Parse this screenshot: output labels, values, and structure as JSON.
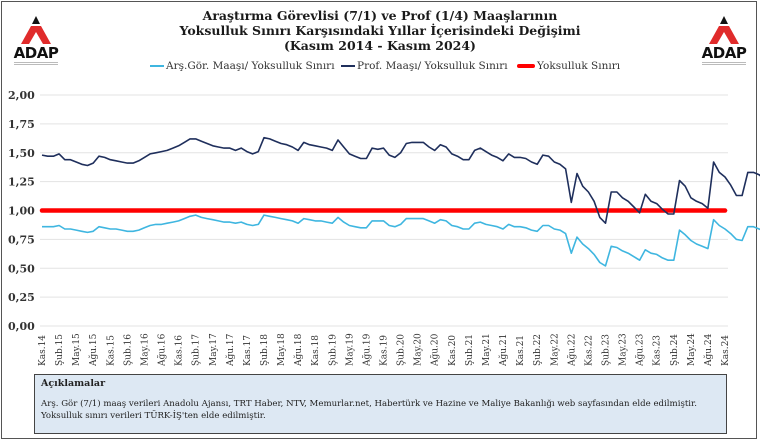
{
  "header": {
    "title_lines": [
      "Araştırma Görevlisi (7/1) ve Prof (1/4) Maaşlarının",
      "Yoksulluk Sınırı Karşısındaki Yıllar İçerisindeki Değişimi",
      "(Kasım 2014 - Kasım 2024)"
    ],
    "logo_left": {
      "name": "ADAP"
    },
    "logo_right": {
      "name": "ADAP"
    }
  },
  "colors": {
    "arsgor": "#3fb6e0",
    "prof": "#1f2f5c",
    "threshold": "#ff0000",
    "grid": "#e3e3e3",
    "note_bg": "#dde8f3"
  },
  "notes": {
    "title": "Açıklamalar",
    "lines": [
      "Arş. Gör (7/1) maaş verileri Anadolu Ajansı, TRT Haber, NTV, Memurlar.net, Habertürk ve Hazine ve Maliye Bakanlığı web sayfasından elde edilmiştir.",
      "Yoksulluk sınırı verileri TÜRK-İŞ'ten elde edilmiştir."
    ]
  },
  "chart_data": {
    "type": "line",
    "title": "Araştırma Görevlisi (7/1) ve Prof (1/4) Maaşlarının Yoksulluk Sınırı Karşısındaki Yıllar İçerisindeki Değişimi (Kasım 2014 - Kasım 2024)",
    "xlabel": "",
    "ylabel": "",
    "ylim": [
      0,
      2
    ],
    "yticks": [
      "0,00",
      "0,25",
      "0,50",
      "0,75",
      "1,00",
      "1,25",
      "1,50",
      "1,75",
      "2,00"
    ],
    "ytick_values": [
      0,
      0.25,
      0.5,
      0.75,
      1.0,
      1.25,
      1.5,
      1.75,
      2.0
    ],
    "grid": true,
    "legend_position": "top",
    "x_tick_labels": [
      "Kas.14",
      "Şub.15",
      "May.15",
      "Ağu.15",
      "Kas.15",
      "Şub.16",
      "May.16",
      "Ağu.16",
      "Kas.16",
      "Şub.17",
      "May.17",
      "Ağu.17",
      "Kas.17",
      "Şub.18",
      "May.18",
      "Ağu.18",
      "Kas.18",
      "Şub.19",
      "May.19",
      "Ağu.19",
      "Kas.19",
      "Şub.20",
      "May.20",
      "Ağu.20",
      "Kas.20",
      "Şub.21",
      "May.21",
      "Ağu.21",
      "Kas.21",
      "Şub.22",
      "May.22",
      "Ağu.22",
      "Kas.22",
      "Şub.23",
      "May.23",
      "Ağu.23",
      "Kas.23",
      "Şub.24",
      "May.24",
      "Ağu.24",
      "Kas.24"
    ],
    "x_tick_every_months": 3,
    "n_points": 121,
    "series": [
      {
        "name": "Arş.Gör. Maaşı/ Yoksulluk Sınırı",
        "color": "#3fb6e0",
        "values": [
          0.86,
          0.86,
          0.86,
          0.87,
          0.84,
          0.84,
          0.83,
          0.82,
          0.81,
          0.82,
          0.86,
          0.85,
          0.84,
          0.84,
          0.83,
          0.82,
          0.82,
          0.83,
          0.85,
          0.87,
          0.88,
          0.88,
          0.89,
          0.9,
          0.91,
          0.93,
          0.95,
          0.96,
          0.94,
          0.93,
          0.92,
          0.91,
          0.9,
          0.9,
          0.89,
          0.9,
          0.88,
          0.87,
          0.88,
          0.96,
          0.95,
          0.94,
          0.93,
          0.92,
          0.91,
          0.89,
          0.93,
          0.92,
          0.91,
          0.91,
          0.9,
          0.89,
          0.94,
          0.9,
          0.87,
          0.86,
          0.85,
          0.85,
          0.91,
          0.91,
          0.91,
          0.87,
          0.86,
          0.88,
          0.93,
          0.93,
          0.93,
          0.93,
          0.91,
          0.89,
          0.92,
          0.91,
          0.87,
          0.86,
          0.84,
          0.84,
          0.89,
          0.9,
          0.88,
          0.87,
          0.86,
          0.84,
          0.88,
          0.86,
          0.86,
          0.85,
          0.83,
          0.82,
          0.87,
          0.87,
          0.84,
          0.83,
          0.8,
          0.63,
          0.77,
          0.71,
          0.67,
          0.62,
          0.55,
          0.52,
          0.69,
          0.68,
          0.65,
          0.63,
          0.6,
          0.57,
          0.66,
          0.63,
          0.62,
          0.59,
          0.57,
          0.57,
          0.83,
          0.79,
          0.74,
          0.71,
          0.69,
          0.67,
          0.92,
          0.87,
          0.84,
          0.8,
          0.75,
          0.74,
          0.86,
          0.86,
          0.84,
          0.82,
          0.81
        ]
      },
      {
        "name": "Prof. Maaşı/ Yoksulluk Sınırı",
        "color": "#1f2f5c",
        "values": [
          1.48,
          1.47,
          1.47,
          1.49,
          1.44,
          1.44,
          1.42,
          1.4,
          1.39,
          1.41,
          1.47,
          1.46,
          1.44,
          1.43,
          1.42,
          1.41,
          1.41,
          1.43,
          1.46,
          1.49,
          1.5,
          1.51,
          1.52,
          1.54,
          1.56,
          1.59,
          1.62,
          1.62,
          1.6,
          1.58,
          1.56,
          1.55,
          1.54,
          1.54,
          1.52,
          1.54,
          1.51,
          1.49,
          1.51,
          1.63,
          1.62,
          1.6,
          1.58,
          1.57,
          1.55,
          1.52,
          1.59,
          1.57,
          1.56,
          1.55,
          1.54,
          1.52,
          1.61,
          1.55,
          1.49,
          1.47,
          1.45,
          1.45,
          1.54,
          1.53,
          1.54,
          1.48,
          1.46,
          1.5,
          1.58,
          1.59,
          1.59,
          1.59,
          1.55,
          1.52,
          1.57,
          1.55,
          1.49,
          1.47,
          1.44,
          1.44,
          1.52,
          1.54,
          1.51,
          1.48,
          1.46,
          1.43,
          1.49,
          1.46,
          1.46,
          1.45,
          1.42,
          1.4,
          1.48,
          1.47,
          1.42,
          1.4,
          1.36,
          1.07,
          1.32,
          1.21,
          1.16,
          1.08,
          0.94,
          0.89,
          1.16,
          1.16,
          1.11,
          1.08,
          1.03,
          0.98,
          1.14,
          1.08,
          1.06,
          1.01,
          0.97,
          0.97,
          1.26,
          1.21,
          1.11,
          1.08,
          1.06,
          1.02,
          1.42,
          1.33,
          1.29,
          1.22,
          1.13,
          1.13,
          1.33,
          1.33,
          1.31,
          1.27,
          1.25
        ]
      },
      {
        "name": "Yoksulluk Sınırı",
        "color": "#ff0000",
        "values_constant": 1.0
      }
    ]
  }
}
